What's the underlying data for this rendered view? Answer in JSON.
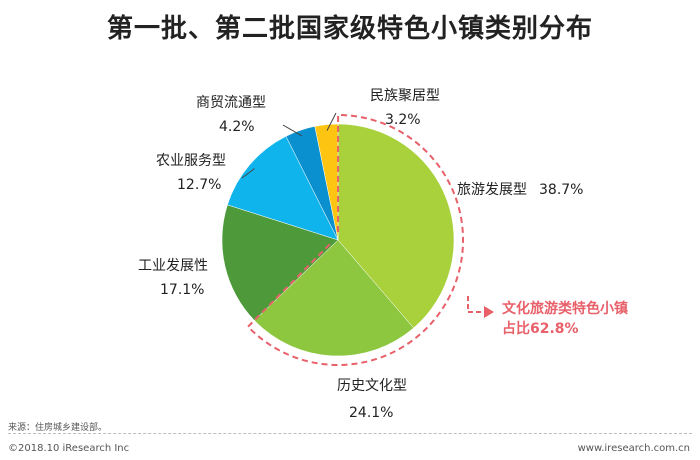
{
  "page": {
    "title": "第一批、第二批国家级特色小镇类别分布",
    "source": "来源：住房城乡建设部。",
    "copyright": "©2018.10 iResearch Inc",
    "website": "www.iresearch.com.cn"
  },
  "chart_data": {
    "type": "pie",
    "title": "第一批、第二批国家级特色小镇类别分布",
    "slices": [
      {
        "label": "旅游发展型",
        "value": 38.7,
        "value_label": "38.7%",
        "color": "#a8d13b"
      },
      {
        "label": "历史文化型",
        "value": 24.1,
        "value_label": "24.1%",
        "color": "#8dc63f"
      },
      {
        "label": "工业发展性",
        "value": 17.1,
        "value_label": "17.1%",
        "color": "#4e9a3a"
      },
      {
        "label": "农业服务型",
        "value": 12.7,
        "value_label": "12.7%",
        "color": "#10b4ec"
      },
      {
        "label": "商贸流通型",
        "value": 4.2,
        "value_label": "4.2%",
        "color": "#0a8fcf"
      },
      {
        "label": "民族聚居型",
        "value": 3.2,
        "value_label": "3.2%",
        "color": "#fdc512"
      }
    ],
    "annotation": {
      "line1": "文化旅游类特色小镇",
      "line2": "占比62.8%",
      "color": "#e8606a"
    }
  }
}
